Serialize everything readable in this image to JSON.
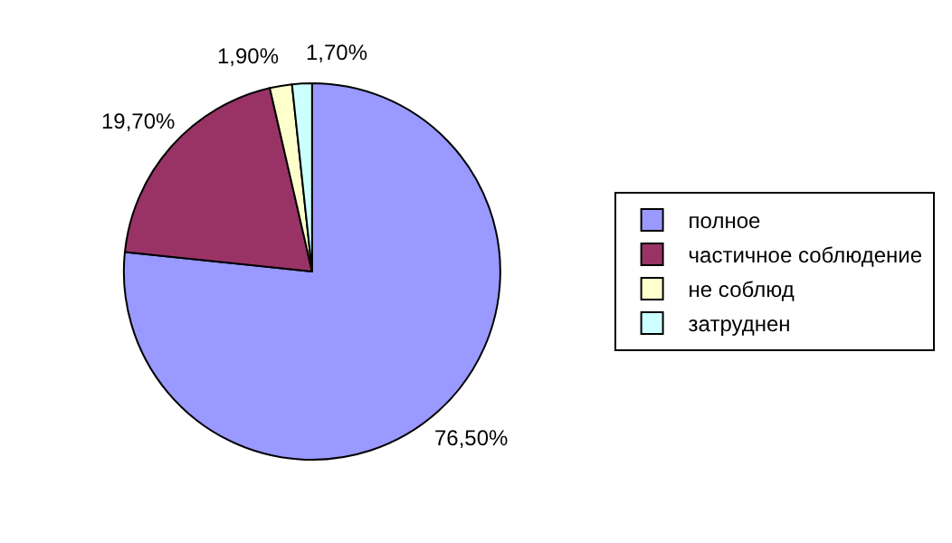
{
  "chart_data": {
    "type": "pie",
    "categories": [
      "полное",
      "частичное соблюдение",
      "не соблюд",
      "затруднен"
    ],
    "values": [
      76.5,
      19.7,
      1.9,
      1.7
    ],
    "value_labels": [
      "76,50%",
      "19,70%",
      "1,90%",
      "1,70%"
    ],
    "colors": [
      "#9999ff",
      "#993366",
      "#ffffcc",
      "#ccffff"
    ],
    "legend": "right"
  }
}
